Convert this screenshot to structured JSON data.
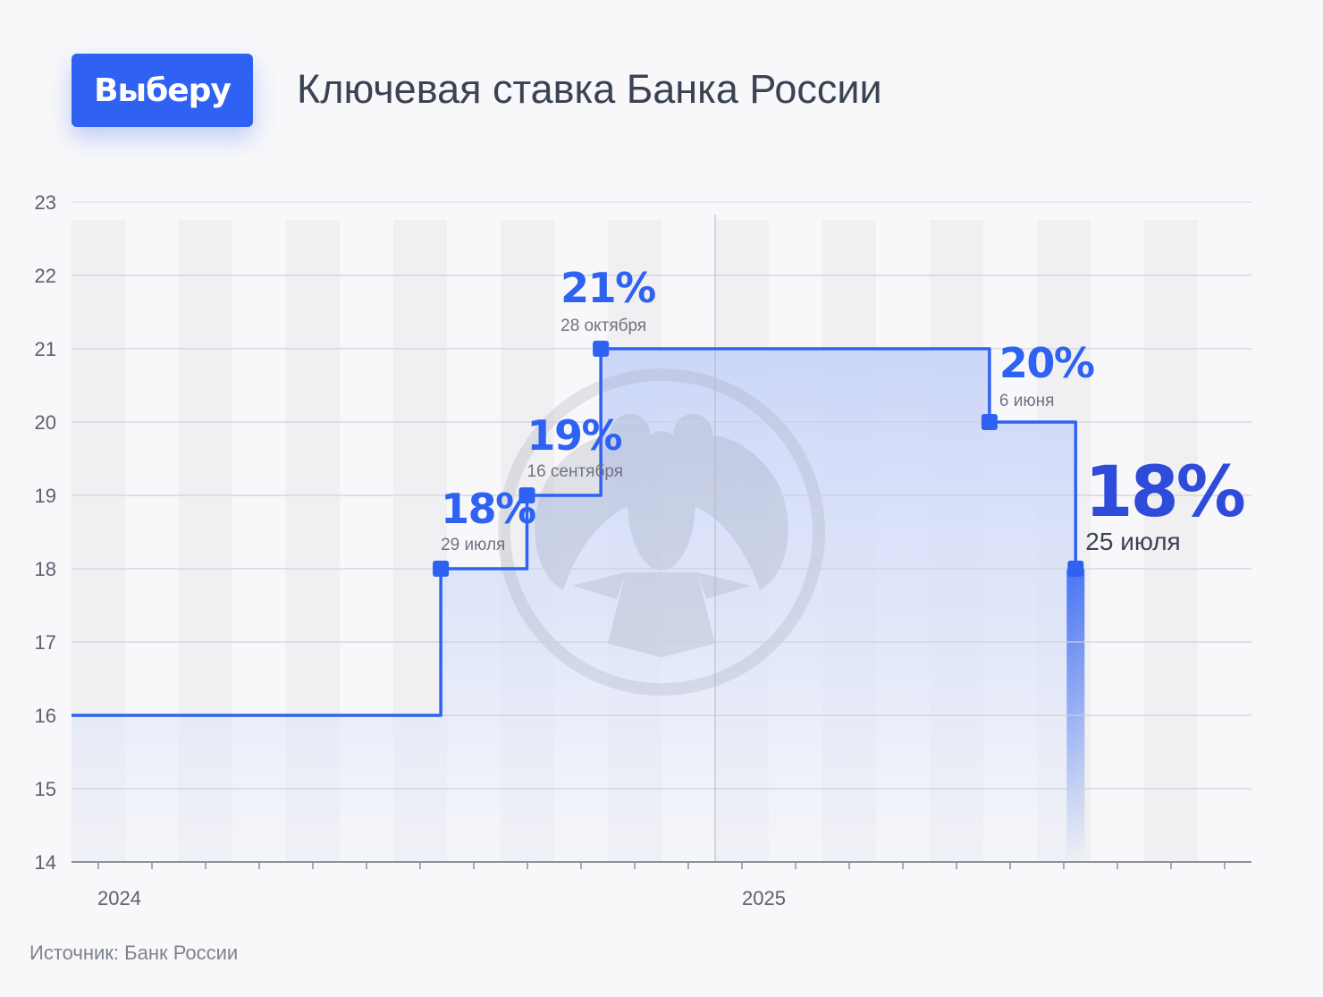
{
  "brand": {
    "logo_text": "Выберу",
    "accent_color": "#2f62f2",
    "emphasis_color": "#2f4bd9"
  },
  "title": "Ключевая ставка Банка России",
  "source": "Источник: Банк России",
  "chart_data": {
    "type": "line",
    "step": true,
    "title": "Ключевая ставка Банка России",
    "xlabel": "",
    "ylabel": "",
    "ylim": [
      14,
      23
    ],
    "yticks": [
      14,
      15,
      16,
      17,
      18,
      19,
      20,
      21,
      22,
      23
    ],
    "x_labels": [
      "2024",
      "2025"
    ],
    "xlim": [
      "2024-01-01",
      "2025-10-31"
    ],
    "grid": true,
    "area_fill": true,
    "watermark": "bank-of-russia-eagle-emblem",
    "series": [
      {
        "color": "#2f62f2",
        "points": [
          {
            "x": "2024-01-01",
            "y": 16
          },
          {
            "x": "2024-07-29",
            "y": 18
          },
          {
            "x": "2024-09-16",
            "y": 19
          },
          {
            "x": "2024-10-28",
            "y": 21
          },
          {
            "x": "2025-06-06",
            "y": 20
          },
          {
            "x": "2025-07-25",
            "y": 18
          }
        ]
      }
    ],
    "annotations": [
      {
        "x": "2024-07-29",
        "y": 18,
        "value": "18%",
        "date": "29 июля",
        "emphasis": false
      },
      {
        "x": "2024-09-16",
        "y": 19,
        "value": "19%",
        "date": "16 сентября",
        "emphasis": false
      },
      {
        "x": "2024-10-28",
        "y": 21,
        "value": "21%",
        "date": "28 октября",
        "emphasis": false
      },
      {
        "x": "2025-06-06",
        "y": 20,
        "value": "20%",
        "date": "6 июня",
        "emphasis": false
      },
      {
        "x": "2025-07-25",
        "y": 18,
        "value": "18%",
        "date": "25 июля",
        "emphasis": true
      }
    ]
  }
}
